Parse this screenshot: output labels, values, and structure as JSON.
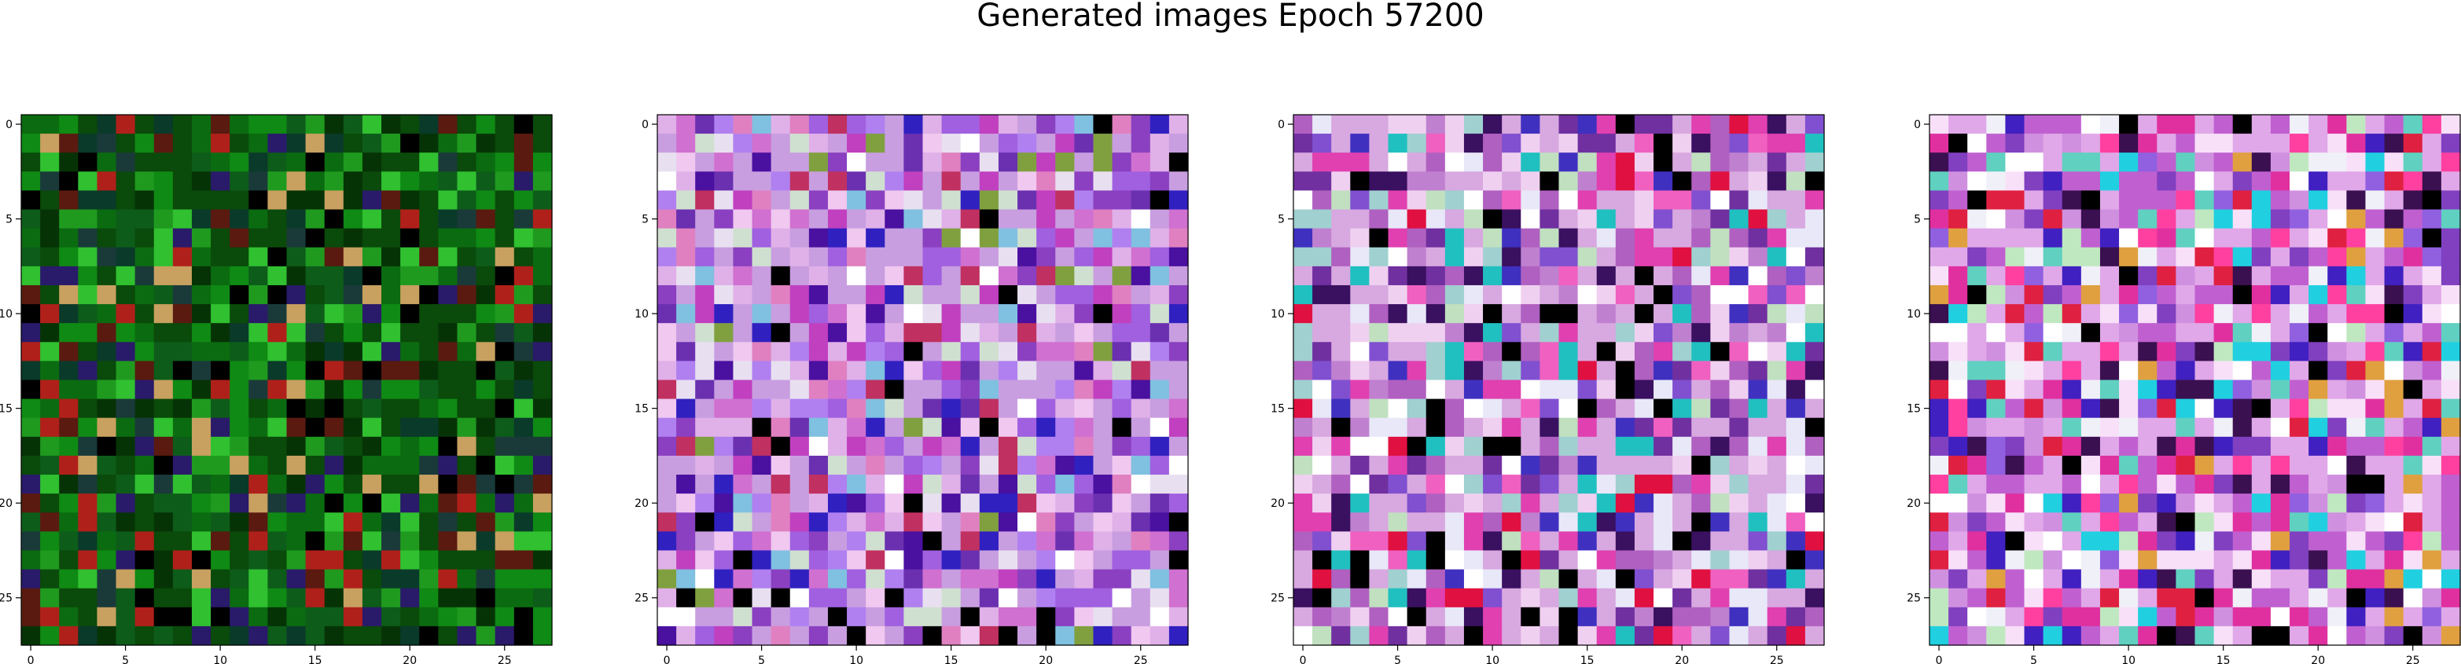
{
  "title": "Generated images Epoch 57200",
  "chart_data": [
    {
      "type": "heatmap",
      "title": "",
      "xlabel": "",
      "ylabel": "",
      "grid_size": 28,
      "xlim": [
        -0.5,
        27.5
      ],
      "ylim": [
        27.5,
        -0.5
      ],
      "x_ticks": [
        "0",
        "5",
        "10",
        "15",
        "20",
        "25"
      ],
      "y_ticks": [
        "0",
        "5",
        "10",
        "15",
        "20",
        "25"
      ],
      "palette": [
        "#0a4a0a",
        "#0b6b10",
        "#0f8a14",
        "#063306",
        "#0d5c1a",
        "#000000",
        "#1f9a1f",
        "#30c030",
        "#0a3a2a",
        "#5a1a10",
        "#b0201a",
        "#2a1a6a",
        "#c8a060",
        "#1a3a3a"
      ],
      "seed": 11,
      "grid_on": false
    },
    {
      "type": "heatmap",
      "title": "",
      "xlabel": "",
      "ylabel": "",
      "grid_size": 28,
      "xlim": [
        -0.5,
        27.5
      ],
      "ylim": [
        27.5,
        -0.5
      ],
      "x_ticks": [
        "0",
        "5",
        "10",
        "15",
        "20",
        "25"
      ],
      "y_ticks": [
        "0",
        "5",
        "10",
        "15",
        "20",
        "25"
      ],
      "palette": [
        "#c89ee0",
        "#a060e0",
        "#e0b0e8",
        "#d070d0",
        "#8a40c0",
        "#f0c8f0",
        "#b080f0",
        "#6a30b0",
        "#e8e0f0",
        "#c040c0",
        "#4a10a0",
        "#e080c0",
        "#3020c0",
        "#80c0e0",
        "#d0e0d0",
        "#000000",
        "#c03060",
        "#80a040",
        "#ffffff"
      ],
      "seed": 23,
      "grid_on": false
    },
    {
      "type": "heatmap",
      "title": "",
      "xlabel": "",
      "ylabel": "",
      "grid_size": 28,
      "xlim": [
        -0.5,
        27.5
      ],
      "ylim": [
        27.5,
        -0.5
      ],
      "x_ticks": [
        "0",
        "5",
        "10",
        "15",
        "20",
        "25"
      ],
      "y_ticks": [
        "0",
        "5",
        "10",
        "15",
        "20",
        "25"
      ],
      "palette": [
        "#d8a8e0",
        "#b060c0",
        "#f0d0f0",
        "#e040b0",
        "#7030a0",
        "#ffffff",
        "#c080d0",
        "#3a1060",
        "#e8e8f8",
        "#a0d0d0",
        "#4030c0",
        "#f060c0",
        "#20c0c0",
        "#000000",
        "#e01040",
        "#c0e0c0",
        "#8050d0"
      ],
      "seed": 37,
      "grid_on": false
    },
    {
      "type": "heatmap",
      "title": "",
      "xlabel": "",
      "ylabel": "",
      "grid_size": 28,
      "xlim": [
        -0.5,
        27.5
      ],
      "ylim": [
        27.5,
        -0.5
      ],
      "x_ticks": [
        "0",
        "5",
        "10",
        "15",
        "20",
        "25"
      ],
      "y_ticks": [
        "0",
        "5",
        "10",
        "15",
        "20",
        "25"
      ],
      "palette": [
        "#e0a8e8",
        "#c060d0",
        "#f8e0f8",
        "#e030a0",
        "#8040c0",
        "#ffffff",
        "#d090e0",
        "#3a1050",
        "#f0f0f8",
        "#60d0c0",
        "#4020c0",
        "#ff40a0",
        "#20d0e0",
        "#000000",
        "#e02040",
        "#c0e8c0",
        "#9060e0",
        "#e0a040"
      ],
      "seed": 53,
      "grid_on": false
    }
  ]
}
